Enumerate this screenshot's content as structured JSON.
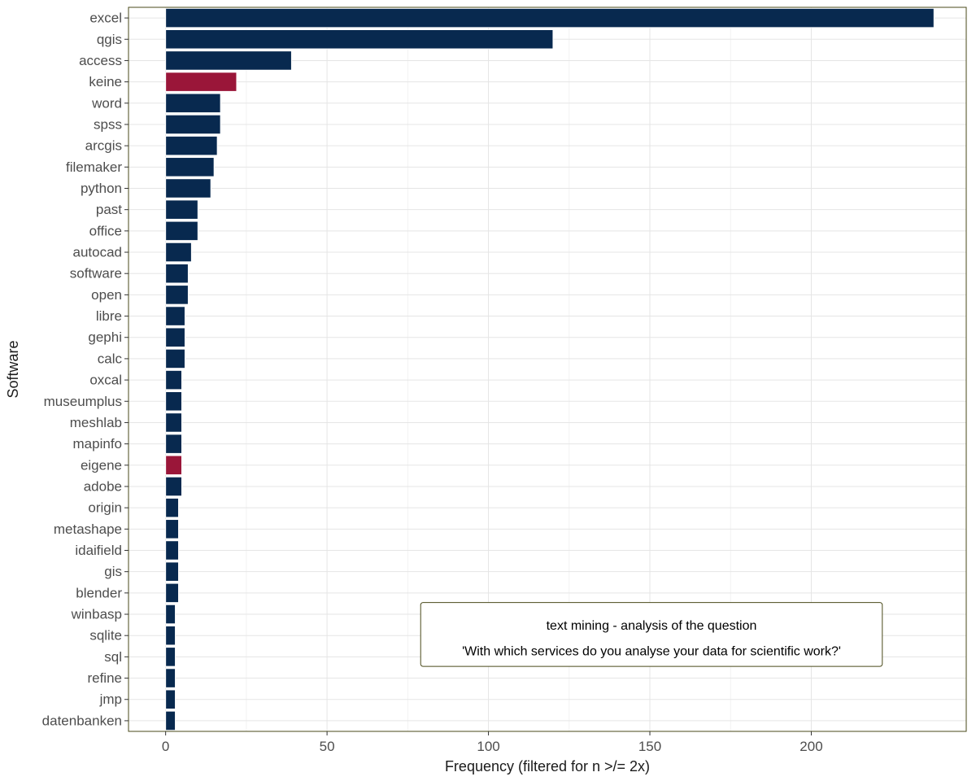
{
  "chart_data": {
    "type": "bar",
    "orientation": "horizontal",
    "xlabel": "Frequency (filtered for n >/= 2x)",
    "ylabel": "Software",
    "xlim": [
      -11.5,
      248
    ],
    "xticks": [
      0,
      50,
      100,
      150,
      200
    ],
    "grid": true,
    "categories": [
      "excel",
      "qgis",
      "access",
      "keine",
      "word",
      "spss",
      "arcgis",
      "filemaker",
      "python",
      "past",
      "office",
      "autocad",
      "software",
      "open",
      "libre",
      "gephi",
      "calc",
      "oxcal",
      "museumplus",
      "meshlab",
      "mapinfo",
      "eigene",
      "adobe",
      "origin",
      "metashape",
      "idaifield",
      "gis",
      "blender",
      "winbasp",
      "sqlite",
      "sql",
      "refine",
      "jmp",
      "datenbanken"
    ],
    "values": [
      238,
      120,
      39,
      22,
      17,
      17,
      16,
      15,
      14,
      10,
      10,
      8,
      7,
      7,
      6,
      6,
      6,
      5,
      5,
      5,
      5,
      5,
      5,
      4,
      4,
      4,
      4,
      4,
      3,
      3,
      3,
      3,
      3,
      3
    ],
    "highlighted": [
      "keine",
      "eigene"
    ],
    "colors": {
      "bar": "#08294f",
      "highlight": "#9a1639",
      "panel_border": "#4a4a1a",
      "grid_major": "#e5e5e5",
      "grid_minor": "#f2f2f2"
    },
    "annotation": {
      "lines": [
        "text mining - analysis of the question",
        "'With which services do you analyse your data for scientific work?'"
      ],
      "x_start": 79,
      "x_end": 222,
      "y_categories": [
        "winbasp",
        "refine"
      ]
    }
  }
}
